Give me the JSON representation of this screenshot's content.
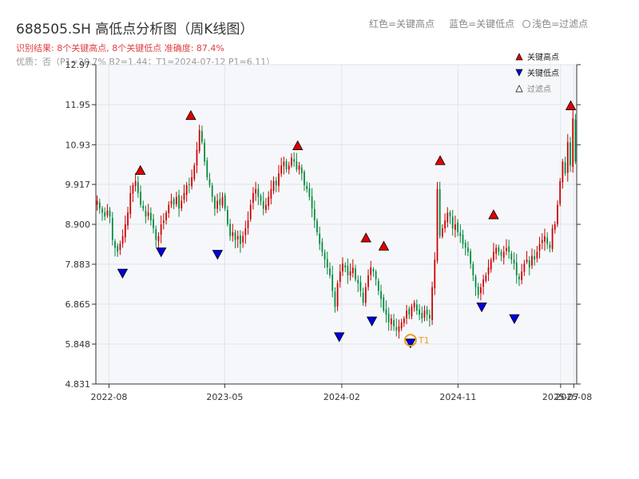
{
  "header": {
    "title": "688505.SH 高低点分析图（周K线图）",
    "result": "识别结果: 8个关键高点, 8个关键低点  准确度: 87.4%",
    "quality": "优质：否（P1=30.7%  B2=1.44；T1=2024-07-12 P1=6.11）",
    "legend_red": "红色=关键高点",
    "legend_blue": "蓝色=关键低点",
    "legend_light": "浅色=过滤点"
  },
  "colors": {
    "up": "#cc0000",
    "down": "#008a3c",
    "high_marker": "#e00000",
    "low_marker": "#0000e0",
    "t1": "#e8a020",
    "plot_bg": "#f6f7fa",
    "grid": "#e0e3e8"
  },
  "chart_data": {
    "type": "candlestick",
    "title": "688505.SH 高低点分析图（周K线图）",
    "ylim": [
      4.831,
      12.97
    ],
    "yticks": [
      4.831,
      5.848,
      6.865,
      7.883,
      8.9,
      9.917,
      10.93,
      11.95,
      12.97
    ],
    "ytick_labels": [
      "4.831",
      "5.848",
      "6.865",
      "7.883",
      "8.900",
      "9.917",
      "10.93",
      "11.95",
      "12.97"
    ],
    "x_start": "2022-07-01",
    "x_end": "2025-08-08",
    "xticks": [
      "2022-08",
      "2023-05",
      "2024-02",
      "2024-11",
      "2025-07",
      "2025-08"
    ],
    "xtick_dates": [
      "2022-08-01",
      "2023-05-01",
      "2024-02-01",
      "2024-11-01",
      "2025-07-01",
      "2025-08-01"
    ],
    "series": [
      {
        "name": "close",
        "values": [
          9.5,
          9.3,
          9.2,
          9.1,
          9.25,
          9.1,
          8.5,
          8.3,
          8.2,
          8.4,
          8.6,
          8.9,
          9.2,
          9.7,
          9.9,
          10.0,
          9.7,
          9.4,
          9.3,
          9.1,
          9.2,
          9.0,
          8.8,
          8.5,
          8.6,
          8.9,
          9.0,
          9.2,
          9.4,
          9.5,
          9.4,
          9.6,
          9.3,
          9.5,
          9.7,
          9.9,
          9.9,
          10.1,
          10.4,
          10.8,
          11.3,
          11.0,
          10.5,
          10.1,
          9.9,
          9.6,
          9.3,
          9.5,
          9.4,
          9.6,
          9.3,
          8.9,
          8.6,
          8.7,
          8.5,
          8.6,
          8.4,
          8.6,
          8.8,
          9.0,
          9.4,
          9.7,
          9.8,
          9.6,
          9.5,
          9.3,
          9.4,
          9.6,
          9.8,
          10.0,
          9.9,
          10.2,
          10.4,
          10.5,
          10.3,
          10.4,
          10.6,
          10.5,
          10.3,
          10.4,
          10.2,
          9.9,
          9.8,
          9.6,
          9.3,
          9.0,
          8.7,
          8.4,
          8.2,
          8.0,
          7.8,
          7.6,
          7.2,
          6.8,
          7.4,
          7.7,
          7.9,
          7.8,
          7.6,
          7.7,
          7.8,
          7.5,
          7.4,
          7.2,
          6.9,
          7.3,
          7.6,
          7.8,
          7.7,
          7.5,
          7.2,
          7.0,
          6.7,
          6.6,
          6.4,
          6.5,
          6.3,
          6.2,
          6.3,
          6.4,
          6.5,
          6.7,
          6.6,
          6.8,
          6.9,
          6.7,
          6.6,
          6.5,
          6.7,
          6.6,
          6.5,
          7.3,
          8.0,
          9.8,
          8.6,
          8.8,
          9.0,
          9.2,
          9.1,
          8.8,
          8.9,
          8.7,
          8.6,
          8.4,
          8.3,
          8.2,
          7.9,
          7.6,
          7.3,
          7.1,
          7.3,
          7.5,
          7.6,
          7.8,
          8.0,
          8.2,
          8.3,
          8.2,
          8.1,
          8.2,
          8.3,
          8.2,
          8.0,
          7.9,
          7.6,
          7.5,
          7.7,
          7.9,
          8.0,
          7.8,
          8.1,
          8.0,
          8.2,
          8.4,
          8.5,
          8.6,
          8.4,
          8.3,
          8.8,
          8.9,
          9.4,
          10.0,
          10.5,
          10.2,
          11.0,
          10.4,
          11.6,
          10.5
        ]
      }
    ],
    "key_highs": [
      {
        "date": "2022-10-14",
        "value": 10.05
      },
      {
        "date": "2023-02-10",
        "value": 11.45
      },
      {
        "date": "2023-10-20",
        "value": 10.68
      },
      {
        "date": "2024-03-29",
        "value": 8.33
      },
      {
        "date": "2024-05-10",
        "value": 8.12
      },
      {
        "date": "2024-09-20",
        "value": 10.3
      },
      {
        "date": "2025-01-24",
        "value": 8.92
      },
      {
        "date": "2025-07-25",
        "value": 11.7
      }
    ],
    "key_lows": [
      {
        "date": "2022-09-02",
        "value": 7.84
      },
      {
        "date": "2022-12-02",
        "value": 8.38
      },
      {
        "date": "2023-04-14",
        "value": 8.32
      },
      {
        "date": "2024-01-26",
        "value": 6.22
      },
      {
        "date": "2024-04-12",
        "value": 6.62
      },
      {
        "date": "2024-07-12",
        "value": 6.06
      },
      {
        "date": "2024-12-27",
        "value": 6.98
      },
      {
        "date": "2025-03-14",
        "value": 6.68
      }
    ],
    "t1": {
      "label": "T1",
      "date": "2024-07-12",
      "value": 6.11
    },
    "legend": [
      {
        "marker": "high",
        "label": "关键高点"
      },
      {
        "marker": "low",
        "label": "关键低点"
      },
      {
        "marker": "filtered",
        "label": "过滤点"
      }
    ],
    "legend_position": "top-right",
    "grid": true
  }
}
